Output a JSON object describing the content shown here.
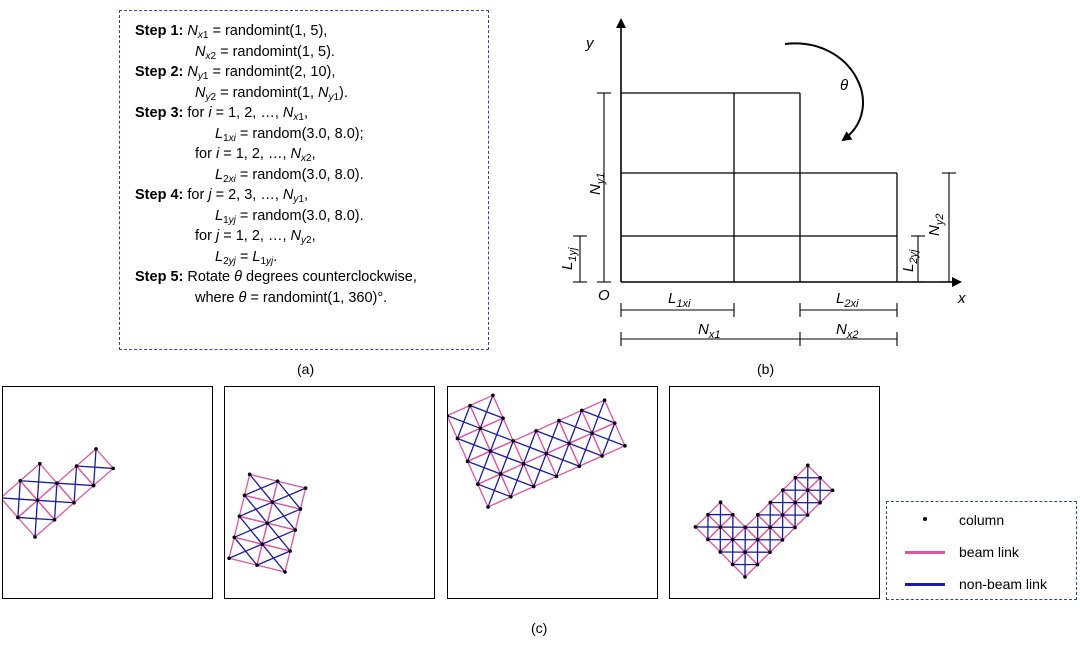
{
  "panel_a": {
    "lines": [
      {
        "step": "Step 1:",
        "html": "<i>N</i><sub><i>x</i>1</sub> = randomint(1, 5),"
      },
      {
        "step": "",
        "html": "<i>N</i><sub><i>x</i>2</sub> = randomint(1, 5)."
      },
      {
        "step": "Step 2:",
        "html": "<i>N</i><sub><i>y</i>1</sub> = randomint(2, 10),"
      },
      {
        "step": "",
        "html": "<i>N</i><sub><i>y</i>2</sub> = randomint(1, <i>N</i><sub><i>y</i>1</sub>)."
      },
      {
        "step": "Step 3:",
        "html": "for <i>i</i> = 1, 2, …, <i>N</i><sub><i>x</i>1</sub>,"
      },
      {
        "step": "",
        "html": "<i>L</i><sub>1<i>xi</i></sub> = random(3.0, 8.0);"
      },
      {
        "step": "",
        "html": "for <i>i</i> = 1, 2, …, <i>N</i><sub><i>x</i>2</sub>,"
      },
      {
        "step": "",
        "html": "<i>L</i><sub>2<i>xi</i></sub> = random(3.0, 8.0)."
      },
      {
        "step": "Step 4:",
        "html": "for <i>j</i> = 2, 3, …, <i>N</i><sub><i>y</i>1</sub>,"
      },
      {
        "step": "",
        "html": "<i>L</i><sub>1<i>yj</i></sub> = random(3.0, 8.0)."
      },
      {
        "step": "",
        "html": "for <i>j</i> = 1, 2, …, <i>N</i><sub><i>y</i>2</sub>,"
      },
      {
        "step": "",
        "html": "<i>L</i><sub>2<i>yj</i></sub> = <i>L</i><sub>1<i>yj</i></sub>."
      },
      {
        "step": "Step 5:",
        "html": "Rotate <i>θ</i> degrees counterclockwise,"
      },
      {
        "step": "",
        "html": "where <i>θ</i> = randomint(1, 360)°."
      }
    ],
    "caption": "(a)"
  },
  "panel_b": {
    "caption": "(b)",
    "labels": {
      "y_axis": "y",
      "x_axis": "x",
      "origin": "O",
      "theta": "θ",
      "ny1_main": "N",
      "ny1_sub": "y1",
      "ny2_main": "N",
      "ny2_sub": "y2",
      "l1yj_main": "L",
      "l1yj_sub": "1yj",
      "l2yj_main": "L",
      "l2yj_sub": "2yj",
      "l1xi_main": "L",
      "l1xi_sub": "1xi",
      "l2xi_main": "L",
      "l2xi_sub": "2xi",
      "nx1_main": "N",
      "nx1_sub": "x1",
      "nx2_main": "N",
      "nx2_sub": "x2"
    }
  },
  "panel_c": {
    "caption": "(c)",
    "legend": [
      {
        "label": "column",
        "kind": "dot",
        "color": "#000000"
      },
      {
        "label": "beam link",
        "kind": "line",
        "color": "#e0559e"
      },
      {
        "label": "non-beam link",
        "kind": "line",
        "color": "#1a1aa6"
      }
    ],
    "colors": {
      "beam": "#e0559e",
      "nonbeam": "#1a1aa6",
      "column": "#000000"
    }
  }
}
